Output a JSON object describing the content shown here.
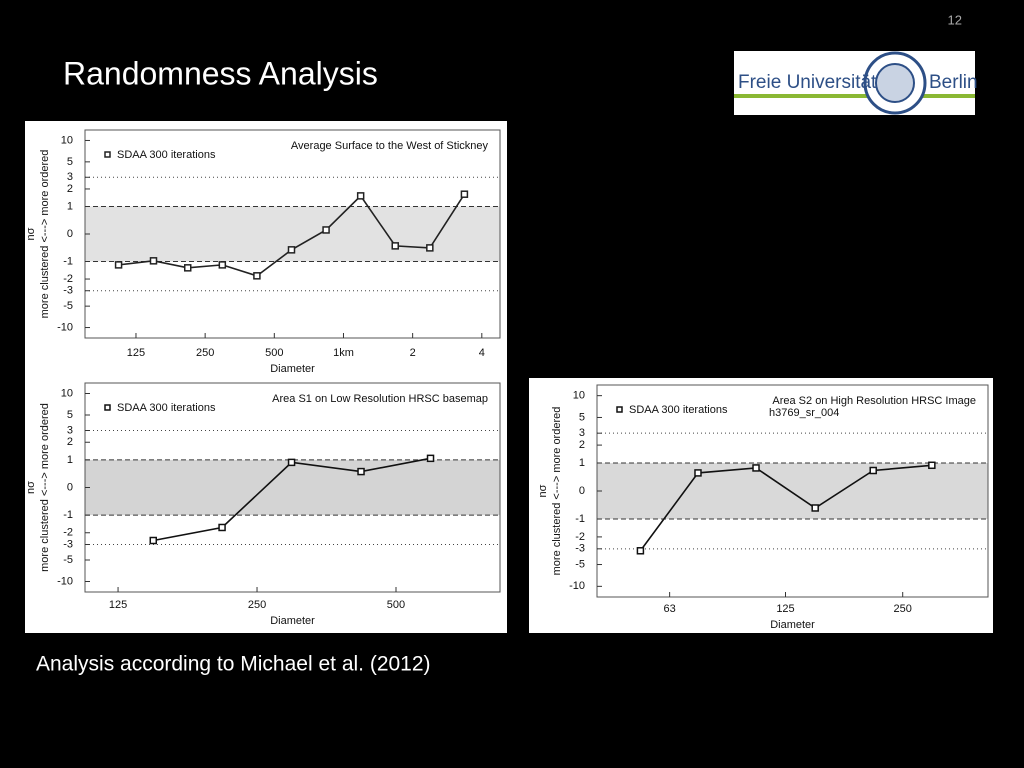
{
  "slide": {
    "page_number": "12",
    "title": "Randomness Analysis",
    "caption": "Analysis according to Michael et al. (2012)",
    "logo_left": "Freie Universität",
    "logo_right": "Berlin"
  },
  "chart_data": [
    {
      "type": "line",
      "title": "Average Surface to the West of Stickney",
      "x_label": "Diameter",
      "y_label": "more clustered <---> more ordered",
      "y_symbol": "nσ",
      "xscale": "log",
      "yscale": "asinh",
      "xlim": [
        75,
        4800
      ],
      "ylim": [
        -14,
        14
      ],
      "xticks": [
        125,
        250,
        500,
        {
          "value": 1000,
          "label": "1km"
        },
        {
          "value": 2000,
          "label": "2"
        },
        {
          "value": 4000,
          "label": "4"
        }
      ],
      "yticks": [
        10,
        5,
        3,
        2,
        1,
        0,
        -1,
        -2,
        -3,
        -5,
        -10
      ],
      "shaded_range": [
        -1,
        1
      ],
      "dashed_lines": [
        -1,
        1
      ],
      "dotted_lines": [
        -3,
        3
      ],
      "shade_color": "#e2e2e2",
      "series": [
        {
          "name": "SDAA 300 iterations",
          "color": "#222222",
          "x": [
            105,
            149,
            210,
            297,
            420,
            594,
            840,
            1188,
            1680,
            2376,
            3360
          ],
          "values": [
            -1.16,
            -0.97,
            -1.31,
            -1.16,
            -1.78,
            -0.53,
            0.13,
            1.55,
            -0.39,
            -0.46,
            1.65
          ]
        }
      ]
    },
    {
      "type": "line",
      "title": "Area S1 on Low Resolution HRSC basemap",
      "x_label": "Diameter",
      "y_label": "more clustered <---> more ordered",
      "y_symbol": "nσ",
      "xscale": "log",
      "yscale": "asinh",
      "xlim": [
        106,
        840
      ],
      "ylim": [
        -14,
        14
      ],
      "xticks": [
        125,
        250,
        500
      ],
      "yticks": [
        10,
        5,
        3,
        2,
        1,
        0,
        -1,
        -2,
        -3,
        -5,
        -10
      ],
      "shaded_range": [
        -1,
        1
      ],
      "dashed_lines": [
        -1,
        1
      ],
      "dotted_lines": [
        -3,
        3
      ],
      "shade_color": "#d4d4d4",
      "series": [
        {
          "name": "SDAA 300 iterations",
          "color": "#111111",
          "x": [
            149,
            210,
            297,
            420,
            594
          ],
          "values": [
            -2.62,
            -1.65,
            0.89,
            0.53,
            1.07
          ]
        }
      ]
    },
    {
      "type": "line",
      "title": "Area S2 on High Resolution HRSC Image",
      "subtitle": "h3769_sr_004",
      "x_label": "Diameter",
      "y_label": "more clustered <---> more ordered",
      "y_symbol": "nσ",
      "xscale": "log",
      "yscale": "asinh",
      "xlim": [
        41,
        414
      ],
      "ylim": [
        -14,
        14
      ],
      "xticks": [
        63,
        125,
        250
      ],
      "yticks": [
        10,
        5,
        3,
        2,
        1,
        0,
        -1,
        -2,
        -3,
        -5,
        -10
      ],
      "shaded_range": [
        -1,
        1
      ],
      "dashed_lines": [
        -1,
        1
      ],
      "dotted_lines": [
        -3,
        3
      ],
      "shade_color": "#d9d9d9",
      "series": [
        {
          "name": "SDAA 300 iterations",
          "color": "#111111",
          "x": [
            53,
            74.5,
            105,
            149,
            210,
            297
          ],
          "values": [
            -3.2,
            0.6,
            0.79,
            -0.56,
            0.69,
            0.9
          ]
        }
      ]
    }
  ]
}
